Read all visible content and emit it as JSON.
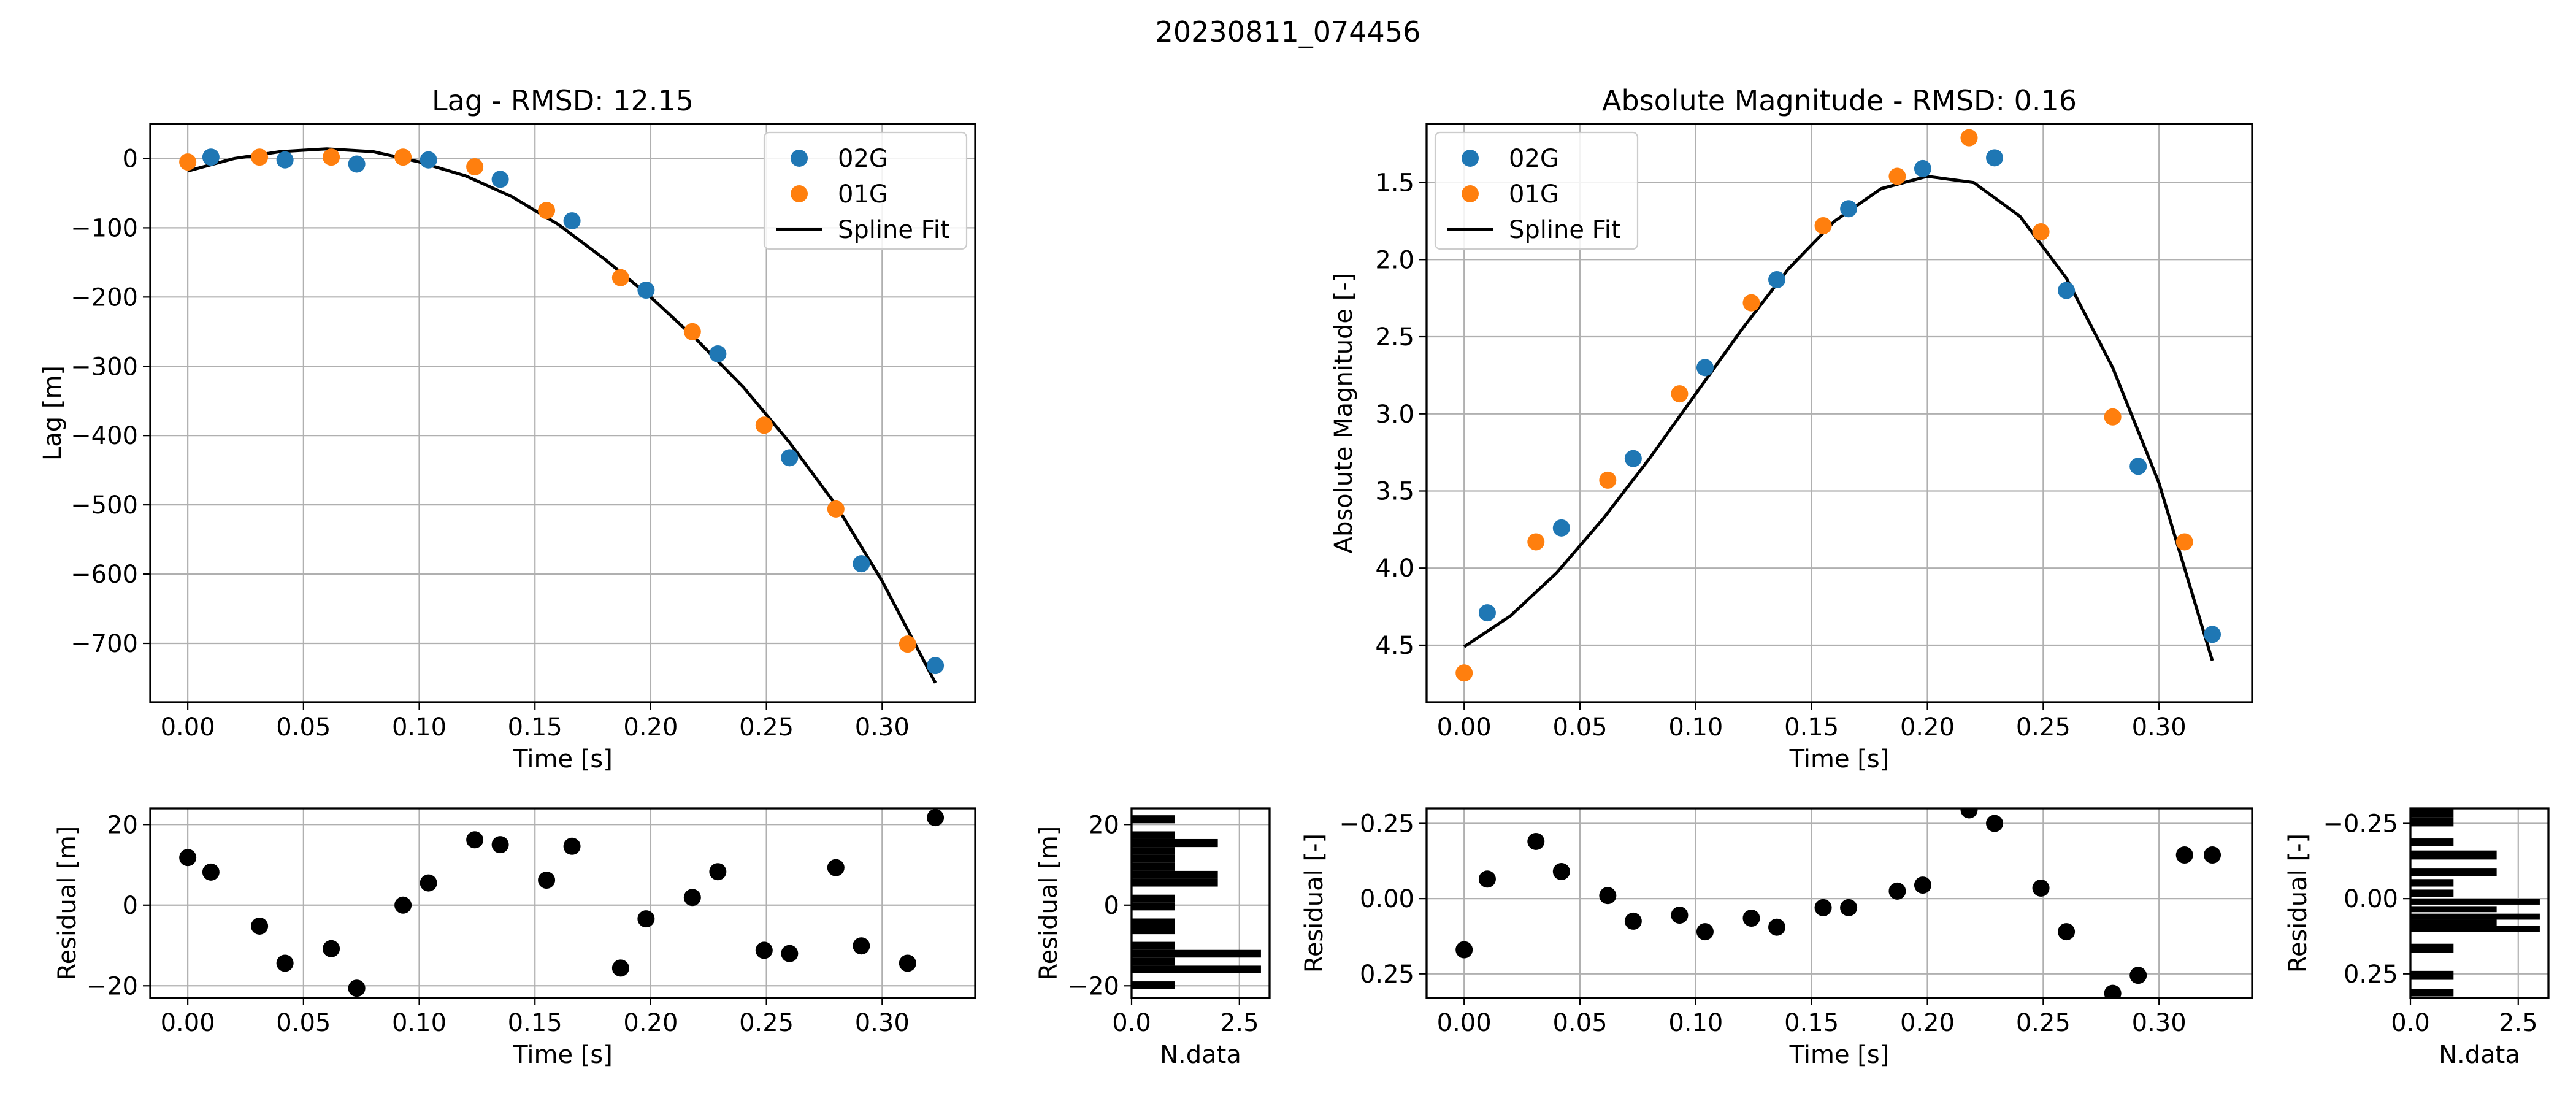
{
  "figure_title": "20230811_074456",
  "colors": {
    "series_02G": "#1f77b4",
    "series_01G": "#ff7f0e",
    "spline": "#000000",
    "residual": "#000000",
    "grid": "#b0b0b0"
  },
  "chart_data": [
    {
      "id": "lag",
      "type": "scatter",
      "title": "Lag - RMSD: 12.15",
      "xlabel": "Time [s]",
      "ylabel": "Lag [m]",
      "xlim": [
        -0.0162,
        0.3402
      ],
      "ylim": [
        -785,
        50
      ],
      "y_inverted": false,
      "grid": true,
      "xticks": [
        0,
        0.05,
        0.1,
        0.15,
        0.2,
        0.25,
        0.3
      ],
      "xtick_labels": [
        "0.00",
        "0.05",
        "0.10",
        "0.15",
        "0.20",
        "0.25",
        "0.30"
      ],
      "yticks": [
        0,
        -100,
        -200,
        -300,
        -400,
        -500,
        -600,
        -700
      ],
      "ytick_labels": [
        "0",
        "−100",
        "−200",
        "−300",
        "−400",
        "−500",
        "−600",
        "−700"
      ],
      "legend_position": "top-right",
      "legend": [
        "02G",
        "01G",
        "Spline Fit"
      ],
      "series": [
        {
          "name": "02G",
          "color": "#1f77b4",
          "points": [
            [
              0.01,
              2
            ],
            [
              0.042,
              -2
            ],
            [
              0.073,
              -8
            ],
            [
              0.104,
              -2
            ],
            [
              0.135,
              -30
            ],
            [
              0.166,
              -90
            ],
            [
              0.198,
              -190
            ],
            [
              0.229,
              -282
            ],
            [
              0.26,
              -432
            ],
            [
              0.291,
              -585
            ],
            [
              0.323,
              -732
            ]
          ]
        },
        {
          "name": "01G",
          "color": "#ff7f0e",
          "points": [
            [
              0.0,
              -5
            ],
            [
              0.031,
              2
            ],
            [
              0.062,
              2
            ],
            [
              0.093,
              2
            ],
            [
              0.124,
              -12
            ],
            [
              0.155,
              -75
            ],
            [
              0.187,
              -172
            ],
            [
              0.218,
              -250
            ],
            [
              0.249,
              -385
            ],
            [
              0.28,
              -506
            ],
            [
              0.311,
              -701
            ]
          ]
        }
      ],
      "fit": {
        "name": "Spline Fit",
        "x": [
          0.0,
          0.02,
          0.04,
          0.06,
          0.08,
          0.1,
          0.12,
          0.14,
          0.16,
          0.18,
          0.2,
          0.22,
          0.24,
          0.26,
          0.28,
          0.3,
          0.323
        ],
        "y": [
          -18,
          0,
          10,
          14,
          10,
          -5,
          -25,
          -55,
          -95,
          -145,
          -200,
          -262,
          -330,
          -410,
          -500,
          -610,
          -757
        ]
      }
    },
    {
      "id": "mag",
      "type": "scatter",
      "title": "Absolute Magnitude - RMSD: 0.16",
      "xlabel": "Time [s]",
      "ylabel": "Absolute Magnitude [-]",
      "xlim": [
        -0.0162,
        0.3402
      ],
      "ylim": [
        4.87,
        1.12
      ],
      "y_inverted": true,
      "grid": true,
      "xticks": [
        0,
        0.05,
        0.1,
        0.15,
        0.2,
        0.25,
        0.3
      ],
      "xtick_labels": [
        "0.00",
        "0.05",
        "0.10",
        "0.15",
        "0.20",
        "0.25",
        "0.30"
      ],
      "yticks": [
        1.5,
        2.0,
        2.5,
        3.0,
        3.5,
        4.0,
        4.5
      ],
      "ytick_labels": [
        "1.5",
        "2.0",
        "2.5",
        "3.0",
        "3.5",
        "4.0",
        "4.5"
      ],
      "legend_position": "top-left",
      "legend": [
        "02G",
        "01G",
        "Spline Fit"
      ],
      "series": [
        {
          "name": "02G",
          "color": "#1f77b4",
          "points": [
            [
              0.01,
              4.29
            ],
            [
              0.042,
              3.74
            ],
            [
              0.073,
              3.29
            ],
            [
              0.104,
              2.7
            ],
            [
              0.135,
              2.13
            ],
            [
              0.166,
              1.67
            ],
            [
              0.198,
              1.41
            ],
            [
              0.229,
              1.34
            ],
            [
              0.26,
              2.2
            ],
            [
              0.291,
              3.34
            ],
            [
              0.323,
              4.43
            ]
          ]
        },
        {
          "name": "01G",
          "color": "#ff7f0e",
          "points": [
            [
              0.0,
              4.68
            ],
            [
              0.031,
              3.83
            ],
            [
              0.062,
              3.43
            ],
            [
              0.093,
              2.87
            ],
            [
              0.124,
              2.28
            ],
            [
              0.155,
              1.78
            ],
            [
              0.187,
              1.46
            ],
            [
              0.218,
              1.21
            ],
            [
              0.249,
              1.82
            ],
            [
              0.28,
              3.02
            ],
            [
              0.311,
              3.83
            ]
          ]
        }
      ],
      "fit": {
        "name": "Spline Fit",
        "x": [
          0.0,
          0.02,
          0.04,
          0.06,
          0.08,
          0.1,
          0.12,
          0.14,
          0.16,
          0.18,
          0.2,
          0.22,
          0.24,
          0.26,
          0.28,
          0.3,
          0.323
        ],
        "y": [
          4.51,
          4.31,
          4.03,
          3.68,
          3.29,
          2.87,
          2.45,
          2.06,
          1.75,
          1.54,
          1.46,
          1.5,
          1.72,
          2.12,
          2.7,
          3.45,
          4.6
        ]
      }
    },
    {
      "id": "lag_residual",
      "type": "scatter",
      "xlabel": "Time [s]",
      "ylabel": "Residual [m]",
      "xlim": [
        -0.0162,
        0.3402
      ],
      "ylim": [
        -23,
        24
      ],
      "y_inverted": false,
      "grid": true,
      "xticks": [
        0,
        0.05,
        0.1,
        0.15,
        0.2,
        0.25,
        0.3
      ],
      "xtick_labels": [
        "0.00",
        "0.05",
        "0.10",
        "0.15",
        "0.20",
        "0.25",
        "0.30"
      ],
      "yticks": [
        20,
        0,
        -20
      ],
      "ytick_labels": [
        "20",
        "0",
        "−20"
      ],
      "series": [
        {
          "color": "#000000",
          "points": [
            [
              0.0,
              11.8
            ],
            [
              0.01,
              8.2
            ],
            [
              0.031,
              -5.2
            ],
            [
              0.042,
              -14.4
            ],
            [
              0.062,
              -10.8
            ],
            [
              0.073,
              -20.6
            ],
            [
              0.093,
              0.0
            ],
            [
              0.104,
              5.5
            ],
            [
              0.124,
              16.2
            ],
            [
              0.135,
              15.0
            ],
            [
              0.155,
              6.2
            ],
            [
              0.166,
              14.6
            ],
            [
              0.187,
              -15.6
            ],
            [
              0.198,
              -3.4
            ],
            [
              0.218,
              1.9
            ],
            [
              0.229,
              8.3
            ],
            [
              0.249,
              -11.2
            ],
            [
              0.26,
              -12.0
            ],
            [
              0.28,
              9.3
            ],
            [
              0.291,
              -10.1
            ],
            [
              0.311,
              -14.4
            ],
            [
              0.323,
              21.7
            ]
          ]
        }
      ]
    },
    {
      "id": "lag_histogram",
      "type": "bar",
      "orientation": "horizontal",
      "xlabel": "N.data",
      "ylabel": "Residual [m]",
      "xlim": [
        0,
        3.2
      ],
      "ylim": [
        -23,
        24
      ],
      "grid": true,
      "xticks": [
        0,
        2.5
      ],
      "xtick_labels": [
        "0.0",
        "2.5"
      ],
      "yticks": [
        20,
        0,
        -20
      ],
      "ytick_labels": [
        "20",
        "0",
        "−20"
      ],
      "bars": [
        {
          "y0": 20.3,
          "y1": 22.3,
          "count": 1
        },
        {
          "y0": 16.4,
          "y1": 18.3,
          "count": 1
        },
        {
          "y0": 14.4,
          "y1": 16.4,
          "count": 2
        },
        {
          "y0": 12.5,
          "y1": 14.4,
          "count": 1
        },
        {
          "y0": 10.5,
          "y1": 12.5,
          "count": 1
        },
        {
          "y0": 8.5,
          "y1": 10.5,
          "count": 1
        },
        {
          "y0": 6.6,
          "y1": 8.5,
          "count": 2
        },
        {
          "y0": 4.6,
          "y1": 6.6,
          "count": 2
        },
        {
          "y0": 0.7,
          "y1": 2.6,
          "count": 1
        },
        {
          "y0": -1.3,
          "y1": 0.7,
          "count": 1
        },
        {
          "y0": -5.2,
          "y1": -3.3,
          "count": 1
        },
        {
          "y0": -7.2,
          "y1": -5.2,
          "count": 1
        },
        {
          "y0": -11.1,
          "y1": -9.1,
          "count": 1
        },
        {
          "y0": -13.0,
          "y1": -11.1,
          "count": 3
        },
        {
          "y0": -15.0,
          "y1": -13.0,
          "count": 1
        },
        {
          "y0": -16.9,
          "y1": -15.0,
          "count": 3
        },
        {
          "y0": -20.8,
          "y1": -18.9,
          "count": 1
        }
      ]
    },
    {
      "id": "mag_residual",
      "type": "scatter",
      "xlabel": "Time [s]",
      "ylabel": "Residual [-]",
      "xlim": [
        -0.0162,
        0.3402
      ],
      "ylim": [
        0.33,
        -0.3
      ],
      "y_inverted": true,
      "grid": true,
      "xticks": [
        0,
        0.05,
        0.1,
        0.15,
        0.2,
        0.25,
        0.3
      ],
      "xtick_labels": [
        "0.00",
        "0.05",
        "0.10",
        "0.15",
        "0.20",
        "0.25",
        "0.30"
      ],
      "yticks": [
        -0.25,
        0.0,
        0.25
      ],
      "ytick_labels": [
        "−0.25",
        "0.00",
        "0.25"
      ],
      "series": [
        {
          "color": "#000000",
          "points": [
            [
              0.0,
              0.17
            ],
            [
              0.01,
              -0.065
            ],
            [
              0.031,
              -0.19
            ],
            [
              0.042,
              -0.09
            ],
            [
              0.062,
              -0.01
            ],
            [
              0.073,
              0.075
            ],
            [
              0.093,
              0.055
            ],
            [
              0.104,
              0.11
            ],
            [
              0.124,
              0.065
            ],
            [
              0.135,
              0.095
            ],
            [
              0.155,
              0.03
            ],
            [
              0.166,
              0.03
            ],
            [
              0.187,
              -0.025
            ],
            [
              0.198,
              -0.045
            ],
            [
              0.218,
              -0.295
            ],
            [
              0.229,
              -0.25
            ],
            [
              0.249,
              -0.035
            ],
            [
              0.26,
              0.11
            ],
            [
              0.28,
              0.315
            ],
            [
              0.291,
              0.255
            ],
            [
              0.311,
              -0.145
            ],
            [
              0.323,
              -0.145
            ]
          ]
        }
      ]
    },
    {
      "id": "mag_histogram",
      "type": "bar",
      "orientation": "horizontal",
      "xlabel": "N.data",
      "ylabel": "Residual [-]",
      "xlim": [
        0,
        3.2
      ],
      "ylim": [
        0.33,
        -0.3
      ],
      "y_inverted": true,
      "grid": true,
      "xticks": [
        0,
        2.5
      ],
      "xtick_labels": [
        "0.0",
        "2.5"
      ],
      "yticks": [
        -0.25,
        0.0,
        0.25
      ],
      "ytick_labels": [
        "−0.25",
        "0.00",
        "0.25"
      ],
      "bars": [
        {
          "y0": -0.3,
          "y1": -0.27,
          "count": 1
        },
        {
          "y0": -0.27,
          "y1": -0.24,
          "count": 1
        },
        {
          "y0": -0.2,
          "y1": -0.175,
          "count": 1
        },
        {
          "y0": -0.16,
          "y1": -0.13,
          "count": 2
        },
        {
          "y0": -0.1,
          "y1": -0.075,
          "count": 2
        },
        {
          "y0": -0.065,
          "y1": -0.04,
          "count": 1
        },
        {
          "y0": -0.03,
          "y1": -0.005,
          "count": 1
        },
        {
          "y0": 0.0,
          "y1": 0.02,
          "count": 3
        },
        {
          "y0": 0.025,
          "y1": 0.045,
          "count": 2
        },
        {
          "y0": 0.05,
          "y1": 0.07,
          "count": 3
        },
        {
          "y0": 0.07,
          "y1": 0.09,
          "count": 2
        },
        {
          "y0": 0.09,
          "y1": 0.11,
          "count": 3
        },
        {
          "y0": 0.15,
          "y1": 0.18,
          "count": 1
        },
        {
          "y0": 0.24,
          "y1": 0.27,
          "count": 1
        },
        {
          "y0": 0.3,
          "y1": 0.325,
          "count": 1
        }
      ]
    }
  ]
}
